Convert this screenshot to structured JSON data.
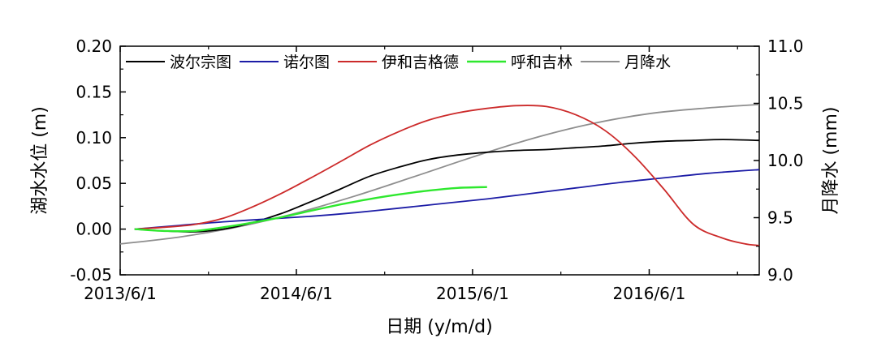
{
  "chart_data": {
    "type": "line",
    "xlabel": "日期 (y/m/d)",
    "ylabel_left": "湖水水位 (m)",
    "ylabel_right": "月降水 (mm)",
    "x_ticks": [
      "2013/6/1",
      "2014/6/1",
      "2015/6/1",
      "2016/6/1"
    ],
    "y_left_ticks": [
      "-0.05",
      "0.00",
      "0.05",
      "0.10",
      "0.15",
      "0.20"
    ],
    "y_right_ticks": [
      "9.0",
      "9.5",
      "10.0",
      "10.5",
      "11.0"
    ],
    "xlim": [
      "2013-06-01",
      "2017-01-15"
    ],
    "ylim_left": [
      -0.05,
      0.2
    ],
    "ylim_right": [
      9.0,
      11.0
    ],
    "grid": false,
    "legend": "top",
    "series": [
      {
        "name": "波尔宗图",
        "color": "#000000",
        "axis": "left",
        "x": [
          "2013-07-01",
          "2013-09-01",
          "2013-11-01",
          "2014-01-01",
          "2014-03-01",
          "2014-05-01",
          "2014-07-01",
          "2014-09-01",
          "2014-11-01",
          "2015-01-01",
          "2015-03-01",
          "2015-05-01",
          "2015-07-01",
          "2015-09-01",
          "2015-11-01",
          "2016-01-01",
          "2016-03-01",
          "2016-05-01",
          "2016-07-01",
          "2016-09-01",
          "2016-11-01",
          "2017-01-15"
        ],
        "y": [
          0.0,
          -0.002,
          -0.003,
          0.0,
          0.007,
          0.017,
          0.03,
          0.044,
          0.058,
          0.068,
          0.076,
          0.081,
          0.084,
          0.086,
          0.087,
          0.089,
          0.091,
          0.094,
          0.096,
          0.097,
          0.098,
          0.097
        ]
      },
      {
        "name": "诺尔图",
        "color": "#1c1ca6",
        "axis": "left",
        "x": [
          "2013-07-01",
          "2013-10-01",
          "2014-01-01",
          "2014-04-01",
          "2014-07-01",
          "2014-10-01",
          "2015-01-01",
          "2015-04-01",
          "2015-07-01",
          "2015-10-01",
          "2016-01-01",
          "2016-04-01",
          "2016-07-01",
          "2016-10-01",
          "2017-01-15"
        ],
        "y": [
          0.0,
          0.004,
          0.008,
          0.011,
          0.014,
          0.018,
          0.023,
          0.028,
          0.033,
          0.039,
          0.045,
          0.051,
          0.056,
          0.061,
          0.065
        ]
      },
      {
        "name": "伊和吉格德",
        "color": "#cc2a2a",
        "axis": "left",
        "x": [
          "2013-07-01",
          "2013-09-01",
          "2013-11-01",
          "2014-01-01",
          "2014-03-01",
          "2014-05-01",
          "2014-07-01",
          "2014-09-01",
          "2014-11-01",
          "2015-01-01",
          "2015-03-01",
          "2015-05-01",
          "2015-07-01",
          "2015-09-01",
          "2015-11-01",
          "2016-01-01",
          "2016-03-01",
          "2016-05-01",
          "2016-07-01",
          "2016-09-01",
          "2016-11-01",
          "2016-12-15",
          "2017-01-15"
        ],
        "y": [
          0.0,
          0.002,
          0.005,
          0.012,
          0.024,
          0.039,
          0.056,
          0.074,
          0.092,
          0.107,
          0.119,
          0.127,
          0.132,
          0.135,
          0.134,
          0.125,
          0.108,
          0.08,
          0.044,
          0.005,
          -0.01,
          -0.016,
          -0.018
        ]
      },
      {
        "name": "呼和吉林",
        "color": "#2ee82e",
        "axis": "left",
        "x": [
          "2013-07-01",
          "2013-09-01",
          "2013-11-01",
          "2014-01-01",
          "2014-03-01",
          "2014-05-01",
          "2014-07-01",
          "2014-09-01",
          "2014-11-01",
          "2015-01-01",
          "2015-03-01",
          "2015-05-01",
          "2015-07-01"
        ],
        "y": [
          0.0,
          -0.002,
          -0.002,
          0.002,
          0.007,
          0.013,
          0.02,
          0.027,
          0.033,
          0.038,
          0.042,
          0.045,
          0.046
        ]
      },
      {
        "name": "月降水",
        "color": "#8e8e8e",
        "axis": "right",
        "x": [
          "2013-06-01",
          "2013-10-01",
          "2014-02-01",
          "2014-06-01",
          "2014-10-01",
          "2015-02-01",
          "2015-06-01",
          "2015-10-01",
          "2016-02-01",
          "2016-06-01",
          "2016-10-01",
          "2017-01-15"
        ],
        "y": [
          9.27,
          9.33,
          9.42,
          9.54,
          9.69,
          9.86,
          10.03,
          10.19,
          10.32,
          10.41,
          10.46,
          10.49
        ]
      }
    ]
  }
}
